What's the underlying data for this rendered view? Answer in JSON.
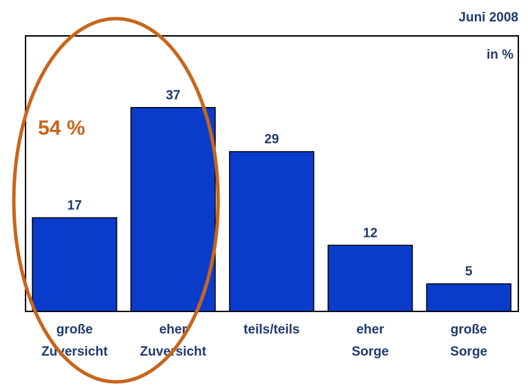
{
  "chart_data": {
    "type": "bar",
    "subtitle": "Juni 2008",
    "unit_label": "in %",
    "annotation": "54 %",
    "categories": [
      "große Zuversicht",
      "eher Zuversicht",
      "teils/teils",
      "eher Sorge",
      "große Sorge"
    ],
    "values": [
      17,
      37,
      29,
      12,
      5
    ],
    "color": "#0a3ccc",
    "annotation_color": "#c8651b",
    "ylim": [
      0,
      50
    ],
    "grid": false
  }
}
